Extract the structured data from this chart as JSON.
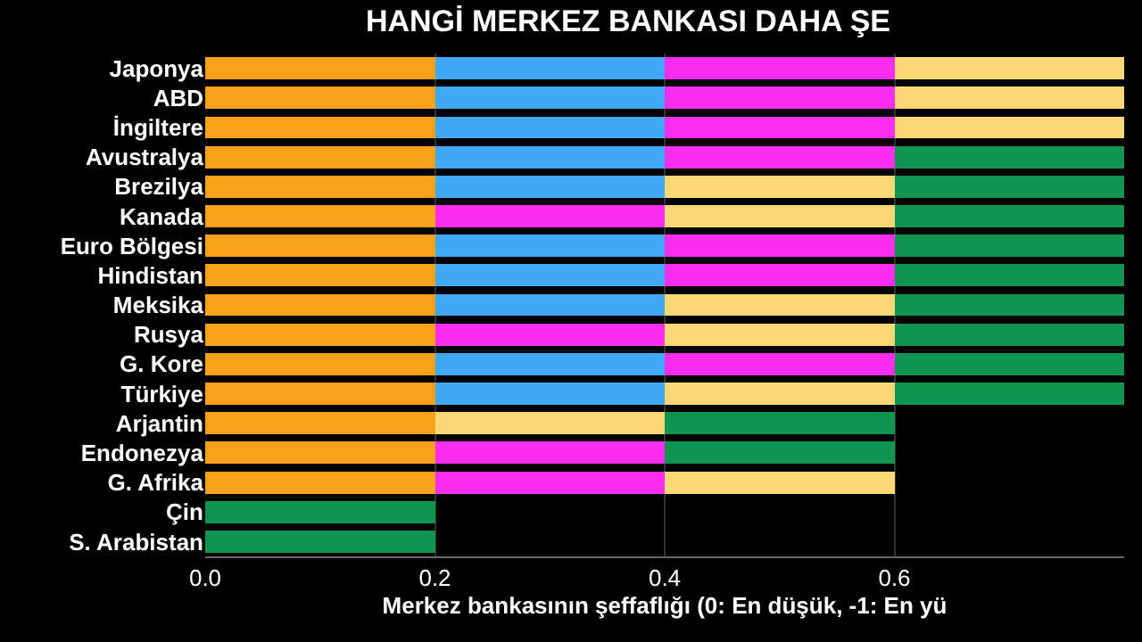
{
  "chart_data": {
    "type": "bar",
    "orientation": "horizontal",
    "stacked": true,
    "title": "HANGİ MERKEZ BANKASI DAHA ŞE",
    "xlabel": "Merkez bankasının şeffaflığı (0: En düşük, -1: En yü",
    "categories": [
      "Japonya",
      "ABD",
      "İngiltere",
      "Avustralya",
      "Brezilya",
      "Kanada",
      "Euro Bölgesi",
      "Hindistan",
      "Meksika",
      "Rusya",
      "G. Kore",
      "Türkiye",
      "Arjantin",
      "Endonezya",
      "G. Afrika",
      "Çin",
      "S. Arabistan"
    ],
    "series": [
      {
        "color": "#f9a11b",
        "values": [
          0.2,
          0.2,
          0.2,
          0.2,
          0.2,
          0.2,
          0.2,
          0.2,
          0.2,
          0.2,
          0.2,
          0.2,
          0.2,
          0.2,
          0.2,
          null,
          null
        ]
      },
      {
        "color": "#3fa9f5",
        "values": [
          0.2,
          0.2,
          0.2,
          0.2,
          0.2,
          null,
          0.2,
          0.2,
          0.2,
          null,
          0.2,
          0.2,
          null,
          null,
          null,
          null,
          null
        ]
      },
      {
        "color": "#fb2ef0",
        "values": [
          0.2,
          0.2,
          0.2,
          0.2,
          null,
          0.2,
          0.2,
          0.2,
          null,
          0.2,
          0.2,
          null,
          null,
          0.2,
          0.2,
          null,
          null
        ]
      },
      {
        "color": "#fcd976",
        "values": [
          0.2,
          0.2,
          0.2,
          null,
          0.2,
          0.2,
          null,
          null,
          0.2,
          0.2,
          null,
          0.2,
          0.2,
          null,
          0.2,
          null,
          null
        ]
      },
      {
        "color": "#0f9550",
        "values": [
          null,
          null,
          null,
          0.2,
          0.2,
          0.2,
          0.2,
          0.2,
          0.2,
          0.2,
          0.2,
          0.2,
          0.2,
          0.2,
          null,
          0.2,
          0.2
        ]
      }
    ],
    "xlim": [
      0,
      0.8
    ],
    "xticks": [
      {
        "value": 0,
        "label": "0.0"
      },
      {
        "value": 0.2,
        "label": "0.2"
      },
      {
        "value": 0.4,
        "label": "0.4"
      },
      {
        "value": 0.6,
        "label": "0.6"
      }
    ],
    "grid": "x"
  }
}
